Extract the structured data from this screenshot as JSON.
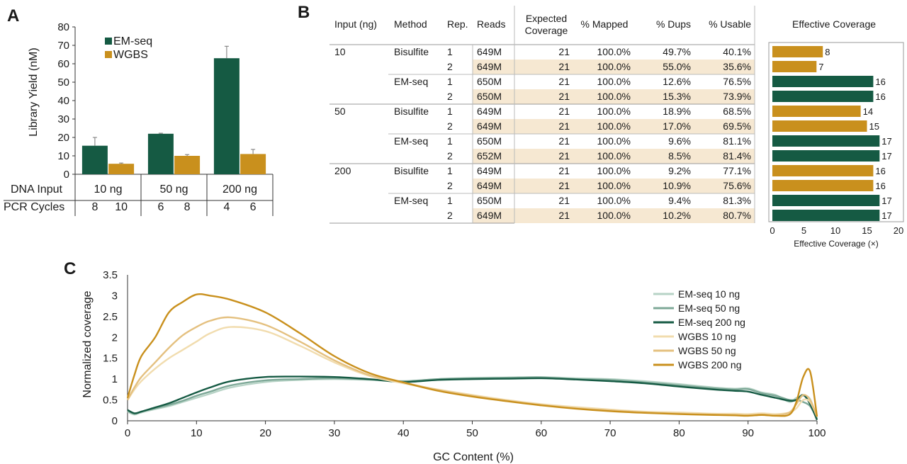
{
  "panels": {
    "a": "A",
    "b": "B",
    "c": "C"
  },
  "colors": {
    "emseq": "#155a43",
    "wgbs": "#c9901d",
    "highlight": "#f6e8d2",
    "axis": "#555555",
    "emseq_10": "#b7d3c6",
    "emseq_50": "#7da897",
    "emseq_200": "#155a43",
    "wgbs_10": "#f1dcae",
    "wgbs_50": "#e4c07f",
    "wgbs_200": "#c9901d"
  },
  "chart_data": [
    {
      "id": "panel-a",
      "type": "bar",
      "ylabel": "Library Yield (nM)",
      "ylim": [
        0,
        80
      ],
      "yticks": [
        0,
        10,
        20,
        30,
        40,
        50,
        60,
        70,
        80
      ],
      "legend": [
        "EM-seq",
        "WGBS"
      ],
      "legend_position": "top",
      "groups": [
        "10 ng",
        "50 ng",
        "200 ng"
      ],
      "row_labels": {
        "input": "DNA Input",
        "pcr": "PCR Cycles"
      },
      "pcr_cycles": [
        [
          "8",
          "10"
        ],
        [
          "6",
          "8"
        ],
        [
          "4",
          "6"
        ]
      ],
      "series": [
        {
          "name": "EM-seq",
          "values": [
            15.5,
            22,
            63
          ],
          "errors": [
            4.5,
            0.3,
            6.5
          ]
        },
        {
          "name": "WGBS",
          "values": [
            5.7,
            10,
            11
          ],
          "errors": [
            0.4,
            0.7,
            2.5
          ]
        }
      ]
    },
    {
      "id": "panel-b",
      "type": "table",
      "headers": [
        "Input (ng)",
        "Method",
        "Rep.",
        "Reads",
        "Expected Coverage",
        "% Mapped",
        "% Dups",
        "% Usable"
      ],
      "rows": [
        {
          "input": "10",
          "method": "Bisulfite",
          "rep": "1",
          "reads": "649M",
          "exp": "21",
          "mapped": "100.0%",
          "dups": "49.7%",
          "usable": "40.1%",
          "cov": 8
        },
        {
          "input": "",
          "method": "",
          "rep": "2",
          "reads": "649M",
          "exp": "21",
          "mapped": "100.0%",
          "dups": "55.0%",
          "usable": "35.6%",
          "cov": 7
        },
        {
          "input": "",
          "method": "EM-seq",
          "rep": "1",
          "reads": "650M",
          "exp": "21",
          "mapped": "100.0%",
          "dups": "12.6%",
          "usable": "76.5%",
          "cov": 16
        },
        {
          "input": "",
          "method": "",
          "rep": "2",
          "reads": "650M",
          "exp": "21",
          "mapped": "100.0%",
          "dups": "15.3%",
          "usable": "73.9%",
          "cov": 16
        },
        {
          "input": "50",
          "method": "Bisulfite",
          "rep": "1",
          "reads": "649M",
          "exp": "21",
          "mapped": "100.0%",
          "dups": "18.9%",
          "usable": "68.5%",
          "cov": 14
        },
        {
          "input": "",
          "method": "",
          "rep": "2",
          "reads": "649M",
          "exp": "21",
          "mapped": "100.0%",
          "dups": "17.0%",
          "usable": "69.5%",
          "cov": 15
        },
        {
          "input": "",
          "method": "EM-seq",
          "rep": "1",
          "reads": "650M",
          "exp": "21",
          "mapped": "100.0%",
          "dups": "9.6%",
          "usable": "81.1%",
          "cov": 17
        },
        {
          "input": "",
          "method": "",
          "rep": "2",
          "reads": "652M",
          "exp": "21",
          "mapped": "100.0%",
          "dups": "8.5%",
          "usable": "81.4%",
          "cov": 17
        },
        {
          "input": "200",
          "method": "Bisulfite",
          "rep": "1",
          "reads": "649M",
          "exp": "21",
          "mapped": "100.0%",
          "dups": "9.2%",
          "usable": "77.1%",
          "cov": 16
        },
        {
          "input": "",
          "method": "",
          "rep": "2",
          "reads": "649M",
          "exp": "21",
          "mapped": "100.0%",
          "dups": "10.9%",
          "usable": "75.6%",
          "cov": 16
        },
        {
          "input": "",
          "method": "EM-seq",
          "rep": "1",
          "reads": "650M",
          "exp": "21",
          "mapped": "100.0%",
          "dups": "9.4%",
          "usable": "81.3%",
          "cov": 17
        },
        {
          "input": "",
          "method": "",
          "rep": "2",
          "reads": "649M",
          "exp": "21",
          "mapped": "100.0%",
          "dups": "10.2%",
          "usable": "80.7%",
          "cov": 17
        }
      ]
    },
    {
      "id": "panel-b-bars",
      "type": "bar",
      "orientation": "horizontal",
      "title": "Effective Coverage",
      "xlabel": "Effective Coverage (×)",
      "xlim": [
        0,
        20
      ],
      "xticks": [
        0,
        5,
        10,
        15,
        20
      ],
      "values": [
        8,
        7,
        16,
        16,
        14,
        15,
        17,
        17,
        16,
        16,
        17,
        17
      ],
      "methods": [
        "WGBS",
        "WGBS",
        "EM-seq",
        "EM-seq",
        "WGBS",
        "WGBS",
        "EM-seq",
        "EM-seq",
        "WGBS",
        "WGBS",
        "EM-seq",
        "EM-seq"
      ]
    },
    {
      "id": "panel-c",
      "type": "line",
      "xlabel": "GC Content (%)",
      "ylabel": "Normalized coverage",
      "xlim": [
        0,
        100
      ],
      "ylim": [
        0,
        3.5
      ],
      "xticks": [
        0,
        10,
        20,
        30,
        40,
        50,
        60,
        70,
        80,
        90,
        100
      ],
      "yticks": [
        "0",
        "0.5",
        "1",
        "1.5",
        "2",
        "2.5",
        "3",
        "3.5"
      ],
      "legend_position": "right",
      "series": [
        {
          "name": "EM-seq 10 ng",
          "color_key": "emseq_10",
          "x": [
            0,
            1,
            2,
            4,
            6,
            8,
            10,
            12,
            15,
            20,
            25,
            30,
            35,
            40,
            45,
            50,
            55,
            60,
            65,
            70,
            75,
            80,
            85,
            88,
            90,
            92,
            94,
            96,
            97,
            98,
            99,
            100
          ],
          "y": [
            0.22,
            0.15,
            0.2,
            0.28,
            0.35,
            0.45,
            0.55,
            0.65,
            0.8,
            0.93,
            0.98,
            1.0,
            0.98,
            0.95,
            1.0,
            1.03,
            1.04,
            1.05,
            1.02,
            1.0,
            0.95,
            0.88,
            0.8,
            0.77,
            0.78,
            0.68,
            0.62,
            0.45,
            0.55,
            0.6,
            0.52,
            0.05
          ]
        },
        {
          "name": "EM-seq 50 ng",
          "color_key": "emseq_50",
          "x": [
            0,
            1,
            2,
            4,
            6,
            8,
            10,
            12,
            15,
            20,
            25,
            30,
            35,
            40,
            45,
            50,
            55,
            60,
            65,
            70,
            75,
            80,
            85,
            88,
            90,
            92,
            94,
            96,
            97,
            98,
            99,
            100
          ],
          "y": [
            0.24,
            0.17,
            0.22,
            0.3,
            0.38,
            0.48,
            0.6,
            0.7,
            0.85,
            0.97,
            1.0,
            1.02,
            0.99,
            0.95,
            1.0,
            1.02,
            1.03,
            1.04,
            1.0,
            0.98,
            0.92,
            0.85,
            0.78,
            0.75,
            0.76,
            0.66,
            0.6,
            0.5,
            0.5,
            0.45,
            0.35,
            0.05
          ]
        },
        {
          "name": "EM-seq 200 ng",
          "color_key": "emseq_200",
          "x": [
            0,
            1,
            2,
            4,
            6,
            8,
            10,
            12,
            15,
            20,
            25,
            30,
            35,
            40,
            45,
            50,
            55,
            60,
            65,
            70,
            75,
            80,
            85,
            88,
            90,
            92,
            94,
            96,
            97,
            98,
            99,
            100
          ],
          "y": [
            0.26,
            0.18,
            0.22,
            0.32,
            0.42,
            0.55,
            0.68,
            0.8,
            0.95,
            1.05,
            1.06,
            1.05,
            1.0,
            0.93,
            0.98,
            1.0,
            1.01,
            1.02,
            0.99,
            0.95,
            0.9,
            0.82,
            0.75,
            0.72,
            0.7,
            0.62,
            0.55,
            0.48,
            0.5,
            0.62,
            0.4,
            0.02
          ]
        },
        {
          "name": "WGBS 10 ng",
          "color_key": "wgbs_10",
          "x": [
            0,
            1,
            2,
            4,
            6,
            8,
            10,
            12,
            15,
            20,
            25,
            30,
            35,
            40,
            45,
            50,
            55,
            60,
            65,
            70,
            75,
            80,
            85,
            88,
            90,
            92,
            94,
            96,
            97,
            98,
            99,
            100
          ],
          "y": [
            0.5,
            0.75,
            0.95,
            1.25,
            1.5,
            1.7,
            1.9,
            2.1,
            2.25,
            2.15,
            1.8,
            1.4,
            1.08,
            0.9,
            0.75,
            0.62,
            0.5,
            0.4,
            0.33,
            0.27,
            0.22,
            0.2,
            0.17,
            0.17,
            0.16,
            0.18,
            0.16,
            0.2,
            0.3,
            0.5,
            0.45,
            0.1
          ]
        },
        {
          "name": "WGBS 50 ng",
          "color_key": "wgbs_50",
          "x": [
            0,
            1,
            2,
            4,
            6,
            8,
            10,
            12,
            15,
            20,
            25,
            30,
            35,
            40,
            45,
            50,
            55,
            60,
            65,
            70,
            75,
            80,
            85,
            88,
            90,
            92,
            94,
            96,
            97,
            98,
            99,
            100
          ],
          "y": [
            0.5,
            0.8,
            1.05,
            1.4,
            1.75,
            2.05,
            2.25,
            2.4,
            2.48,
            2.3,
            1.9,
            1.45,
            1.1,
            0.92,
            0.74,
            0.6,
            0.48,
            0.38,
            0.3,
            0.25,
            0.2,
            0.17,
            0.15,
            0.14,
            0.13,
            0.15,
            0.13,
            0.2,
            0.4,
            0.62,
            0.5,
            0.1
          ]
        },
        {
          "name": "WGBS 200 ng",
          "color_key": "wgbs_200",
          "x": [
            0,
            1,
            2,
            4,
            6,
            8,
            10,
            12,
            15,
            20,
            25,
            30,
            35,
            40,
            45,
            50,
            55,
            60,
            65,
            70,
            75,
            80,
            85,
            88,
            90,
            92,
            94,
            96,
            97,
            98,
            99,
            100
          ],
          "y": [
            0.55,
            1.1,
            1.55,
            2.0,
            2.6,
            2.85,
            3.03,
            3.0,
            2.9,
            2.6,
            2.1,
            1.55,
            1.15,
            0.92,
            0.72,
            0.58,
            0.47,
            0.37,
            0.29,
            0.23,
            0.19,
            0.16,
            0.14,
            0.13,
            0.12,
            0.14,
            0.12,
            0.15,
            0.45,
            1.05,
            1.18,
            0.1
          ]
        }
      ]
    }
  ]
}
